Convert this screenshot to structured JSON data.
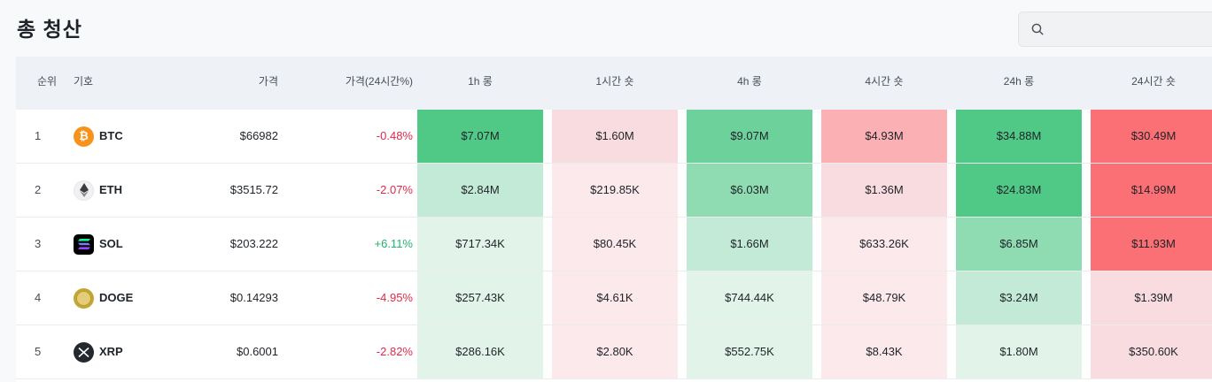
{
  "page": {
    "title": "총 청산"
  },
  "search": {
    "placeholder": "",
    "value": ""
  },
  "table": {
    "headers": {
      "rank": "순위",
      "symbol": "기호",
      "price": "가격",
      "change": "가격(24시간%)",
      "h1_long": "1h 롱",
      "h1_short": "1시간 숏",
      "h4_long": "4h 롱",
      "h4_short": "4시간 숏",
      "h24_long": "24h 롱",
      "h24_short": "24시간 숏"
    },
    "rows": [
      {
        "rank": "1",
        "symbol": "BTC",
        "icon": "bitcoin-icon",
        "price": "$66982",
        "change": "-0.48%",
        "direction": "down",
        "h1_long": "$7.07M",
        "h1_short": "$1.60M",
        "h4_long": "$9.07M",
        "h4_short": "$4.93M",
        "h24_long": "$34.88M",
        "h24_short": "$30.49M"
      },
      {
        "rank": "2",
        "symbol": "ETH",
        "icon": "ethereum-icon",
        "price": "$3515.72",
        "change": "-2.07%",
        "direction": "down",
        "h1_long": "$2.84M",
        "h1_short": "$219.85K",
        "h4_long": "$6.03M",
        "h4_short": "$1.36M",
        "h24_long": "$24.83M",
        "h24_short": "$14.99M"
      },
      {
        "rank": "3",
        "symbol": "SOL",
        "icon": "solana-icon",
        "price": "$203.222",
        "change": "+6.11%",
        "direction": "up",
        "h1_long": "$717.34K",
        "h1_short": "$80.45K",
        "h4_long": "$1.66M",
        "h4_short": "$633.26K",
        "h24_long": "$6.85M",
        "h24_short": "$11.93M"
      },
      {
        "rank": "4",
        "symbol": "DOGE",
        "icon": "dogecoin-icon",
        "price": "$0.14293",
        "change": "-4.95%",
        "direction": "down",
        "h1_long": "$257.43K",
        "h1_short": "$4.61K",
        "h4_long": "$744.44K",
        "h4_short": "$48.79K",
        "h24_long": "$3.24M",
        "h24_short": "$1.39M"
      },
      {
        "rank": "5",
        "symbol": "XRP",
        "icon": "xrp-icon",
        "price": "$0.6001",
        "change": "-2.82%",
        "direction": "down",
        "h1_long": "$286.16K",
        "h1_short": "$2.80K",
        "h4_long": "$552.75K",
        "h4_short": "$8.43K",
        "h24_long": "$1.80M",
        "h24_short": "$350.60K"
      }
    ]
  },
  "colors": {
    "long_levels": [
      "#e2f4ea",
      "#c3ead6",
      "#8fdcb2",
      "#6dd19c",
      "#50c987"
    ],
    "short_levels": [
      "#fbe9eb",
      "#f9dcdf",
      "#f8c4c9",
      "#fbb1b4",
      "#fb7074"
    ],
    "negative": "#e0294a",
    "positive": "#20b26c"
  }
}
